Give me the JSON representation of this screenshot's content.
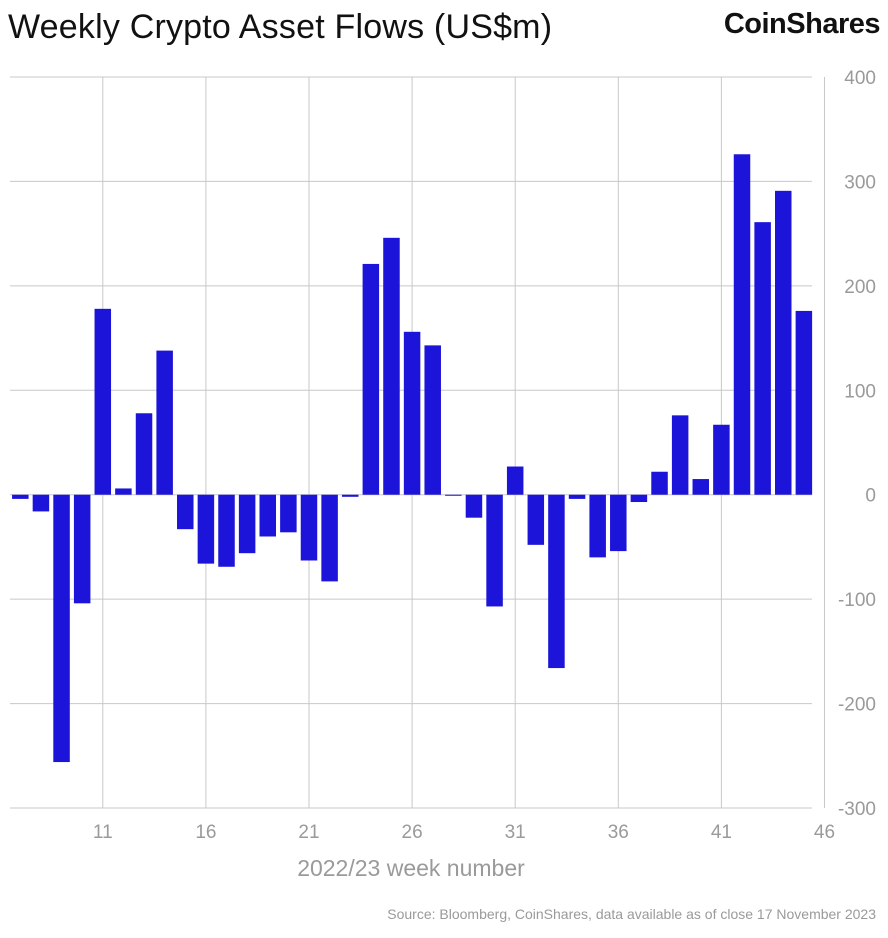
{
  "title": "Weekly Crypto Asset Flows (US$m)",
  "brand": "CoinShares",
  "source": "Source: Bloomberg, CoinShares, data available as of close 17 November 2023",
  "colors": {
    "bar": "#1c14d8",
    "grid": "#c8c8c8",
    "tick": "#9a9a9a"
  },
  "chart_data": {
    "type": "bar",
    "title": "Weekly Crypto Asset Flows (US$m)",
    "xlabel": "2022/23 week number",
    "ylabel": "US$m",
    "ylim": [
      -300,
      400
    ],
    "yticks": [
      400,
      300,
      200,
      100,
      0,
      -100,
      -200,
      -300
    ],
    "ytick_labels": [
      "400",
      "300",
      "200",
      "100",
      "0",
      "-100",
      "-200",
      "-300"
    ],
    "xticks": [
      "11",
      "16",
      "21",
      "26",
      "31",
      "36",
      "41",
      "46"
    ],
    "categories": [
      7,
      8,
      9,
      10,
      11,
      12,
      13,
      14,
      15,
      16,
      17,
      18,
      19,
      20,
      21,
      22,
      23,
      24,
      25,
      26,
      27,
      28,
      29,
      30,
      31,
      32,
      33,
      34,
      35,
      36,
      37,
      38,
      39,
      40,
      41,
      42,
      43,
      44,
      45,
      46
    ],
    "values": [
      -4,
      -16,
      -256,
      -104,
      178,
      6,
      78,
      138,
      -33,
      -66,
      -69,
      -56,
      -40,
      -36,
      -63,
      -83,
      -2,
      221,
      246,
      156,
      143,
      -1,
      -22,
      -107,
      27,
      -48,
      -166,
      -4,
      -60,
      -54,
      -7,
      22,
      76,
      15,
      67,
      326,
      261,
      291,
      176,
      0
    ]
  }
}
